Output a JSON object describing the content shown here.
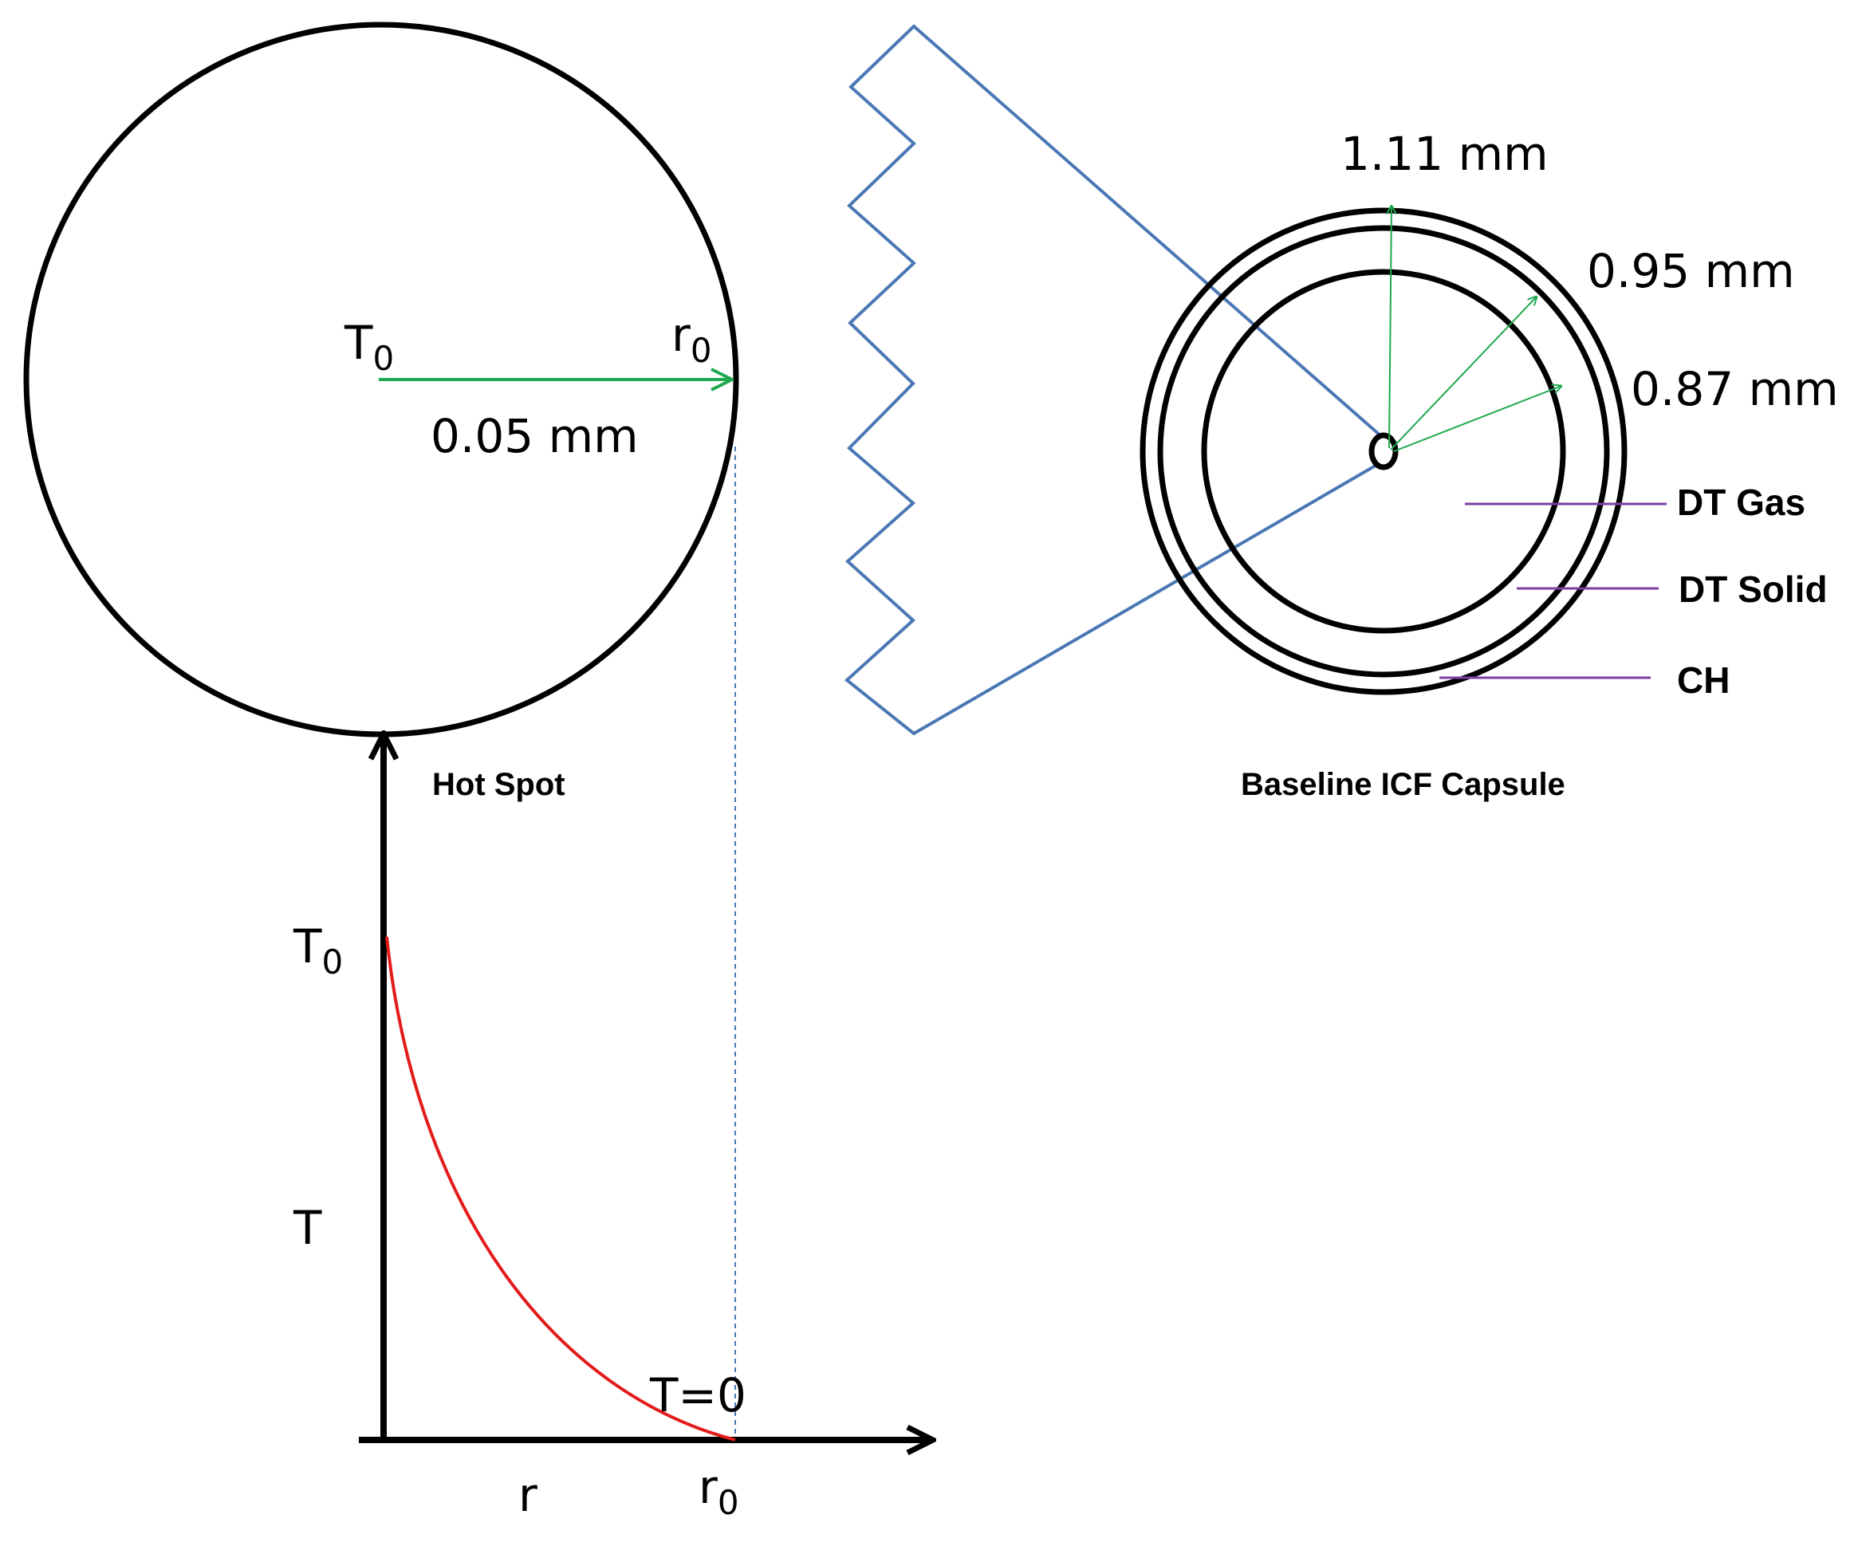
{
  "hot_spot": {
    "center_label": "T",
    "center_label_sub": "0",
    "edge_label": "r",
    "edge_label_sub": "0",
    "radius_label": "0.05 mm",
    "caption": "Hot Spot"
  },
  "capsule": {
    "caption": "Baseline ICF Capsule",
    "radii": [
      {
        "label": "1.11 mm"
      },
      {
        "label": "0.95 mm"
      },
      {
        "label": "0.87 mm"
      }
    ],
    "layers": [
      {
        "label": "DT Gas"
      },
      {
        "label": "DT Solid"
      },
      {
        "label": "CH"
      }
    ]
  },
  "profile": {
    "y_top_label": "T",
    "y_top_label_sub": "0",
    "y_label": "T",
    "x_label": "r",
    "x_end_label": "r",
    "x_end_label_sub": "0",
    "end_value_label": "T=0"
  },
  "colors": {
    "outline": "#000000",
    "radius_arrow": "#1fa84f",
    "zoom_lines": "#4a78b5",
    "leader_lines": "#7b3fa0",
    "curve": "#e31b1b",
    "guide_dash": "#4a78b5"
  }
}
